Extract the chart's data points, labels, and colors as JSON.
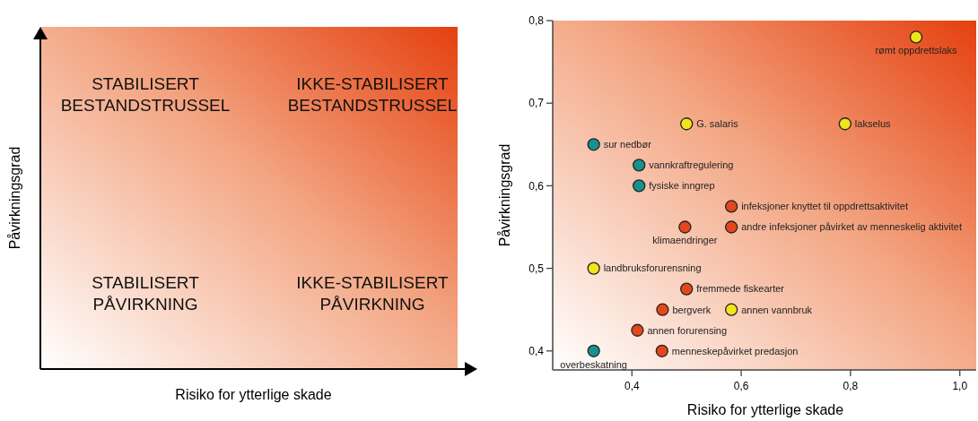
{
  "chart_data": [
    {
      "type": "other",
      "xlabel": "Risiko for ytterlige skade",
      "ylabel": "Påvirkningsgrad",
      "annotations": [
        "STABILISERT\nBESTANDSTRUSSEL",
        "IKKE-STABILISERT\nBESTANDSTRUSSEL",
        "STABILISERT\nPÅVIRKNING",
        "IKKE-STABILISERT\nPÅVIRKNING"
      ]
    },
    {
      "type": "scatter",
      "xlabel": "Risiko for ytterlige skade",
      "ylabel": "Påvirkningsgrad",
      "xlim": [
        0.255,
        1.03
      ],
      "ylim": [
        0.377,
        0.8
      ],
      "xticks": [
        {
          "value": 0.4,
          "label": "0,4"
        },
        {
          "value": 0.6,
          "label": "0,6"
        },
        {
          "value": 0.8,
          "label": "0,8"
        },
        {
          "value": 1.0,
          "label": "1,0"
        }
      ],
      "yticks": [
        {
          "value": 0.4,
          "label": "0,4"
        },
        {
          "value": 0.5,
          "label": "0,5"
        },
        {
          "value": 0.6,
          "label": "0,6"
        },
        {
          "value": 0.7,
          "label": "0,7"
        },
        {
          "value": 0.8,
          "label": "0,8"
        }
      ],
      "marker": "circle",
      "series": [
        {
          "color": "#f2e41c",
          "x": [
            0.92,
            0.5,
            0.79,
            0.33,
            0.582
          ],
          "values": [
            0.78,
            0.675,
            0.675,
            0.5,
            0.45
          ]
        },
        {
          "color": "#17918f",
          "x": [
            0.33,
            0.413,
            0.413,
            0.33
          ],
          "values": [
            0.65,
            0.625,
            0.6,
            0.4
          ]
        },
        {
          "color": "#e2481c",
          "x": [
            0.582,
            0.582,
            0.497,
            0.5,
            0.456,
            0.41,
            0.455
          ],
          "values": [
            0.575,
            0.55,
            0.55,
            0.475,
            0.45,
            0.425,
            0.4
          ]
        }
      ],
      "annotations": [
        {
          "text": "rømt oppdrettslaks",
          "x": 0.92,
          "y": 0.78
        },
        {
          "text": "G. salaris",
          "x": 0.5,
          "y": 0.675
        },
        {
          "text": "lakselus",
          "x": 0.79,
          "y": 0.675
        },
        {
          "text": "sur nedbør",
          "x": 0.33,
          "y": 0.65
        },
        {
          "text": "vannkraftregulering",
          "x": 0.413,
          "y": 0.625
        },
        {
          "text": "fysiske inngrep",
          "x": 0.413,
          "y": 0.6
        },
        {
          "text": "infeksjoner knyttet til oppdrettsaktivitet",
          "x": 0.582,
          "y": 0.575
        },
        {
          "text": "andre infeksjoner påvirket av menneskelig aktivitet",
          "x": 0.582,
          "y": 0.55
        },
        {
          "text": "klimaendringer",
          "x": 0.497,
          "y": 0.55
        },
        {
          "text": "landbruksforurensning",
          "x": 0.33,
          "y": 0.5
        },
        {
          "text": "fremmede fiskearter",
          "x": 0.5,
          "y": 0.475
        },
        {
          "text": "bergverk",
          "x": 0.456,
          "y": 0.45
        },
        {
          "text": "annen vannbruk",
          "x": 0.582,
          "y": 0.45
        },
        {
          "text": "annen forurensing",
          "x": 0.41,
          "y": 0.425
        },
        {
          "text": "menneskepåvirket predasjon",
          "x": 0.455,
          "y": 0.4
        },
        {
          "text": "overbeskatning",
          "x": 0.33,
          "y": 0.4
        }
      ]
    }
  ]
}
